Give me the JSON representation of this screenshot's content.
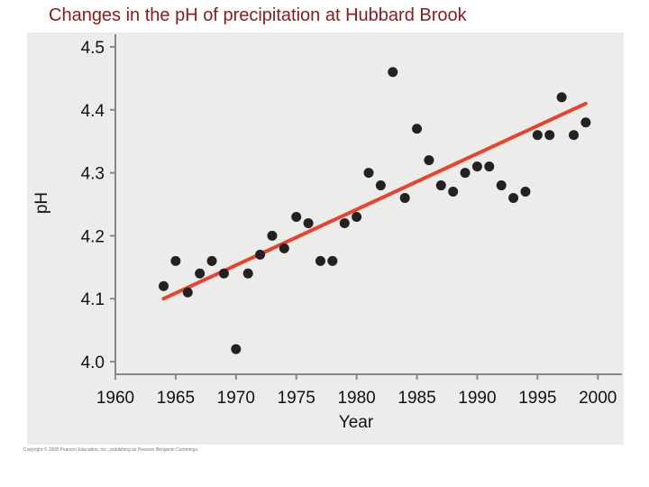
{
  "title": "Changes in the pH of precipitation at Hubbard Brook",
  "credit": "Copyright © 2008 Pearson Education, Inc., publishing as Pearson Benjamin Cummings.",
  "chart_data": {
    "type": "scatter",
    "title": "Changes in the pH of precipitation at Hubbard Brook",
    "xlabel": "Year",
    "ylabel": "pH",
    "xlim": [
      1960,
      2002
    ],
    "ylim": [
      3.98,
      4.52
    ],
    "xticks": [
      1960,
      1965,
      1970,
      1975,
      1980,
      1985,
      1990,
      1995,
      2000
    ],
    "xtick_labels": [
      "1960",
      "1965",
      "1970",
      "1975",
      "1980",
      "1985",
      "1990",
      "1995",
      "2000"
    ],
    "yticks": [
      4.0,
      4.1,
      4.2,
      4.3,
      4.4,
      4.5
    ],
    "ytick_labels": [
      "4.0",
      "4.1",
      "4.2",
      "4.3",
      "4.4",
      "4.5"
    ],
    "grid": false,
    "series": [
      {
        "points": [
          [
            1964,
            4.12
          ],
          [
            1965,
            4.16
          ],
          [
            1966,
            4.11
          ],
          [
            1967,
            4.14
          ],
          [
            1968,
            4.16
          ],
          [
            1969,
            4.14
          ],
          [
            1970,
            4.02
          ],
          [
            1971,
            4.14
          ],
          [
            1972,
            4.17
          ],
          [
            1973,
            4.2
          ],
          [
            1974,
            4.18
          ],
          [
            1975,
            4.23
          ],
          [
            1976,
            4.22
          ],
          [
            1977,
            4.16
          ],
          [
            1978,
            4.16
          ],
          [
            1979,
            4.22
          ],
          [
            1980,
            4.23
          ],
          [
            1981,
            4.3
          ],
          [
            1982,
            4.28
          ],
          [
            1983,
            4.46
          ],
          [
            1984,
            4.26
          ],
          [
            1985,
            4.37
          ],
          [
            1986,
            4.32
          ],
          [
            1987,
            4.28
          ],
          [
            1988,
            4.27
          ],
          [
            1989,
            4.3
          ],
          [
            1990,
            4.31
          ],
          [
            1991,
            4.31
          ],
          [
            1992,
            4.28
          ],
          [
            1993,
            4.26
          ],
          [
            1994,
            4.27
          ],
          [
            1995,
            4.36
          ],
          [
            1996,
            4.36
          ],
          [
            1997,
            4.42
          ],
          [
            1998,
            4.36
          ],
          [
            1999,
            4.38
          ]
        ]
      }
    ],
    "trendline": {
      "x": [
        1964,
        1999
      ],
      "y": [
        4.1,
        4.41
      ]
    },
    "colors": {
      "points": "#222222",
      "trendline": "#e8432e",
      "axis": "#888888",
      "background": "#ececea"
    }
  }
}
